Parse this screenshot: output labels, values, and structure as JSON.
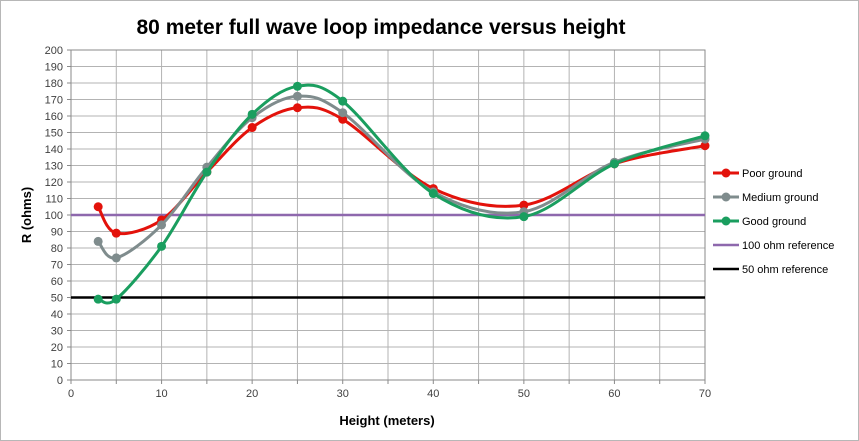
{
  "chart_data": {
    "type": "line",
    "title": "80 meter full wave loop impedance versus height",
    "xlabel": "Height (meters)",
    "ylabel": "R (ohms)",
    "xlim": [
      0,
      70
    ],
    "ylim": [
      0,
      200
    ],
    "x_ticks": [
      0,
      5,
      10,
      15,
      20,
      25,
      30,
      35,
      40,
      45,
      50,
      55,
      60,
      65,
      70
    ],
    "x_tick_labels": [
      "0",
      "",
      "10",
      "",
      "20",
      "",
      "30",
      "",
      "40",
      "",
      "50",
      "",
      "60",
      "",
      "70"
    ],
    "y_ticks": [
      0,
      10,
      20,
      30,
      40,
      50,
      60,
      70,
      80,
      90,
      100,
      110,
      120,
      130,
      140,
      150,
      160,
      170,
      180,
      190,
      200
    ],
    "grid": true,
    "legend_position": "right",
    "series": [
      {
        "name": "Poor ground",
        "color": "#e3120b",
        "marker": "circle",
        "smooth": true,
        "points": [
          [
            3,
            105
          ],
          [
            5,
            89
          ],
          [
            10,
            97
          ],
          [
            15,
            126
          ],
          [
            20,
            153
          ],
          [
            25,
            165
          ],
          [
            30,
            158
          ],
          [
            40,
            116
          ],
          [
            50,
            106
          ],
          [
            60,
            131
          ],
          [
            70,
            142
          ]
        ]
      },
      {
        "name": "Medium ground",
        "color": "#7f8c8d",
        "marker": "circle",
        "smooth": true,
        "points": [
          [
            3,
            84
          ],
          [
            5,
            74
          ],
          [
            10,
            94
          ],
          [
            15,
            129
          ],
          [
            20,
            159
          ],
          [
            25,
            172
          ],
          [
            30,
            162
          ],
          [
            40,
            114
          ],
          [
            50,
            102
          ],
          [
            60,
            132
          ],
          [
            70,
            146
          ]
        ]
      },
      {
        "name": "Good ground",
        "color": "#1a9e5f",
        "marker": "circle",
        "smooth": true,
        "points": [
          [
            3,
            49
          ],
          [
            5,
            49
          ],
          [
            10,
            81
          ],
          [
            15,
            126
          ],
          [
            20,
            161
          ],
          [
            25,
            178
          ],
          [
            30,
            169
          ],
          [
            40,
            113
          ],
          [
            50,
            99
          ],
          [
            60,
            131
          ],
          [
            70,
            148
          ]
        ]
      },
      {
        "name": "100 ohm reference",
        "color": "#8e68ad",
        "marker": "none",
        "smooth": false,
        "points": [
          [
            0,
            100
          ],
          [
            70,
            100
          ]
        ]
      },
      {
        "name": "50 ohm reference",
        "color": "#000000",
        "marker": "none",
        "smooth": false,
        "points": [
          [
            0,
            50
          ],
          [
            70,
            50
          ]
        ]
      }
    ]
  }
}
